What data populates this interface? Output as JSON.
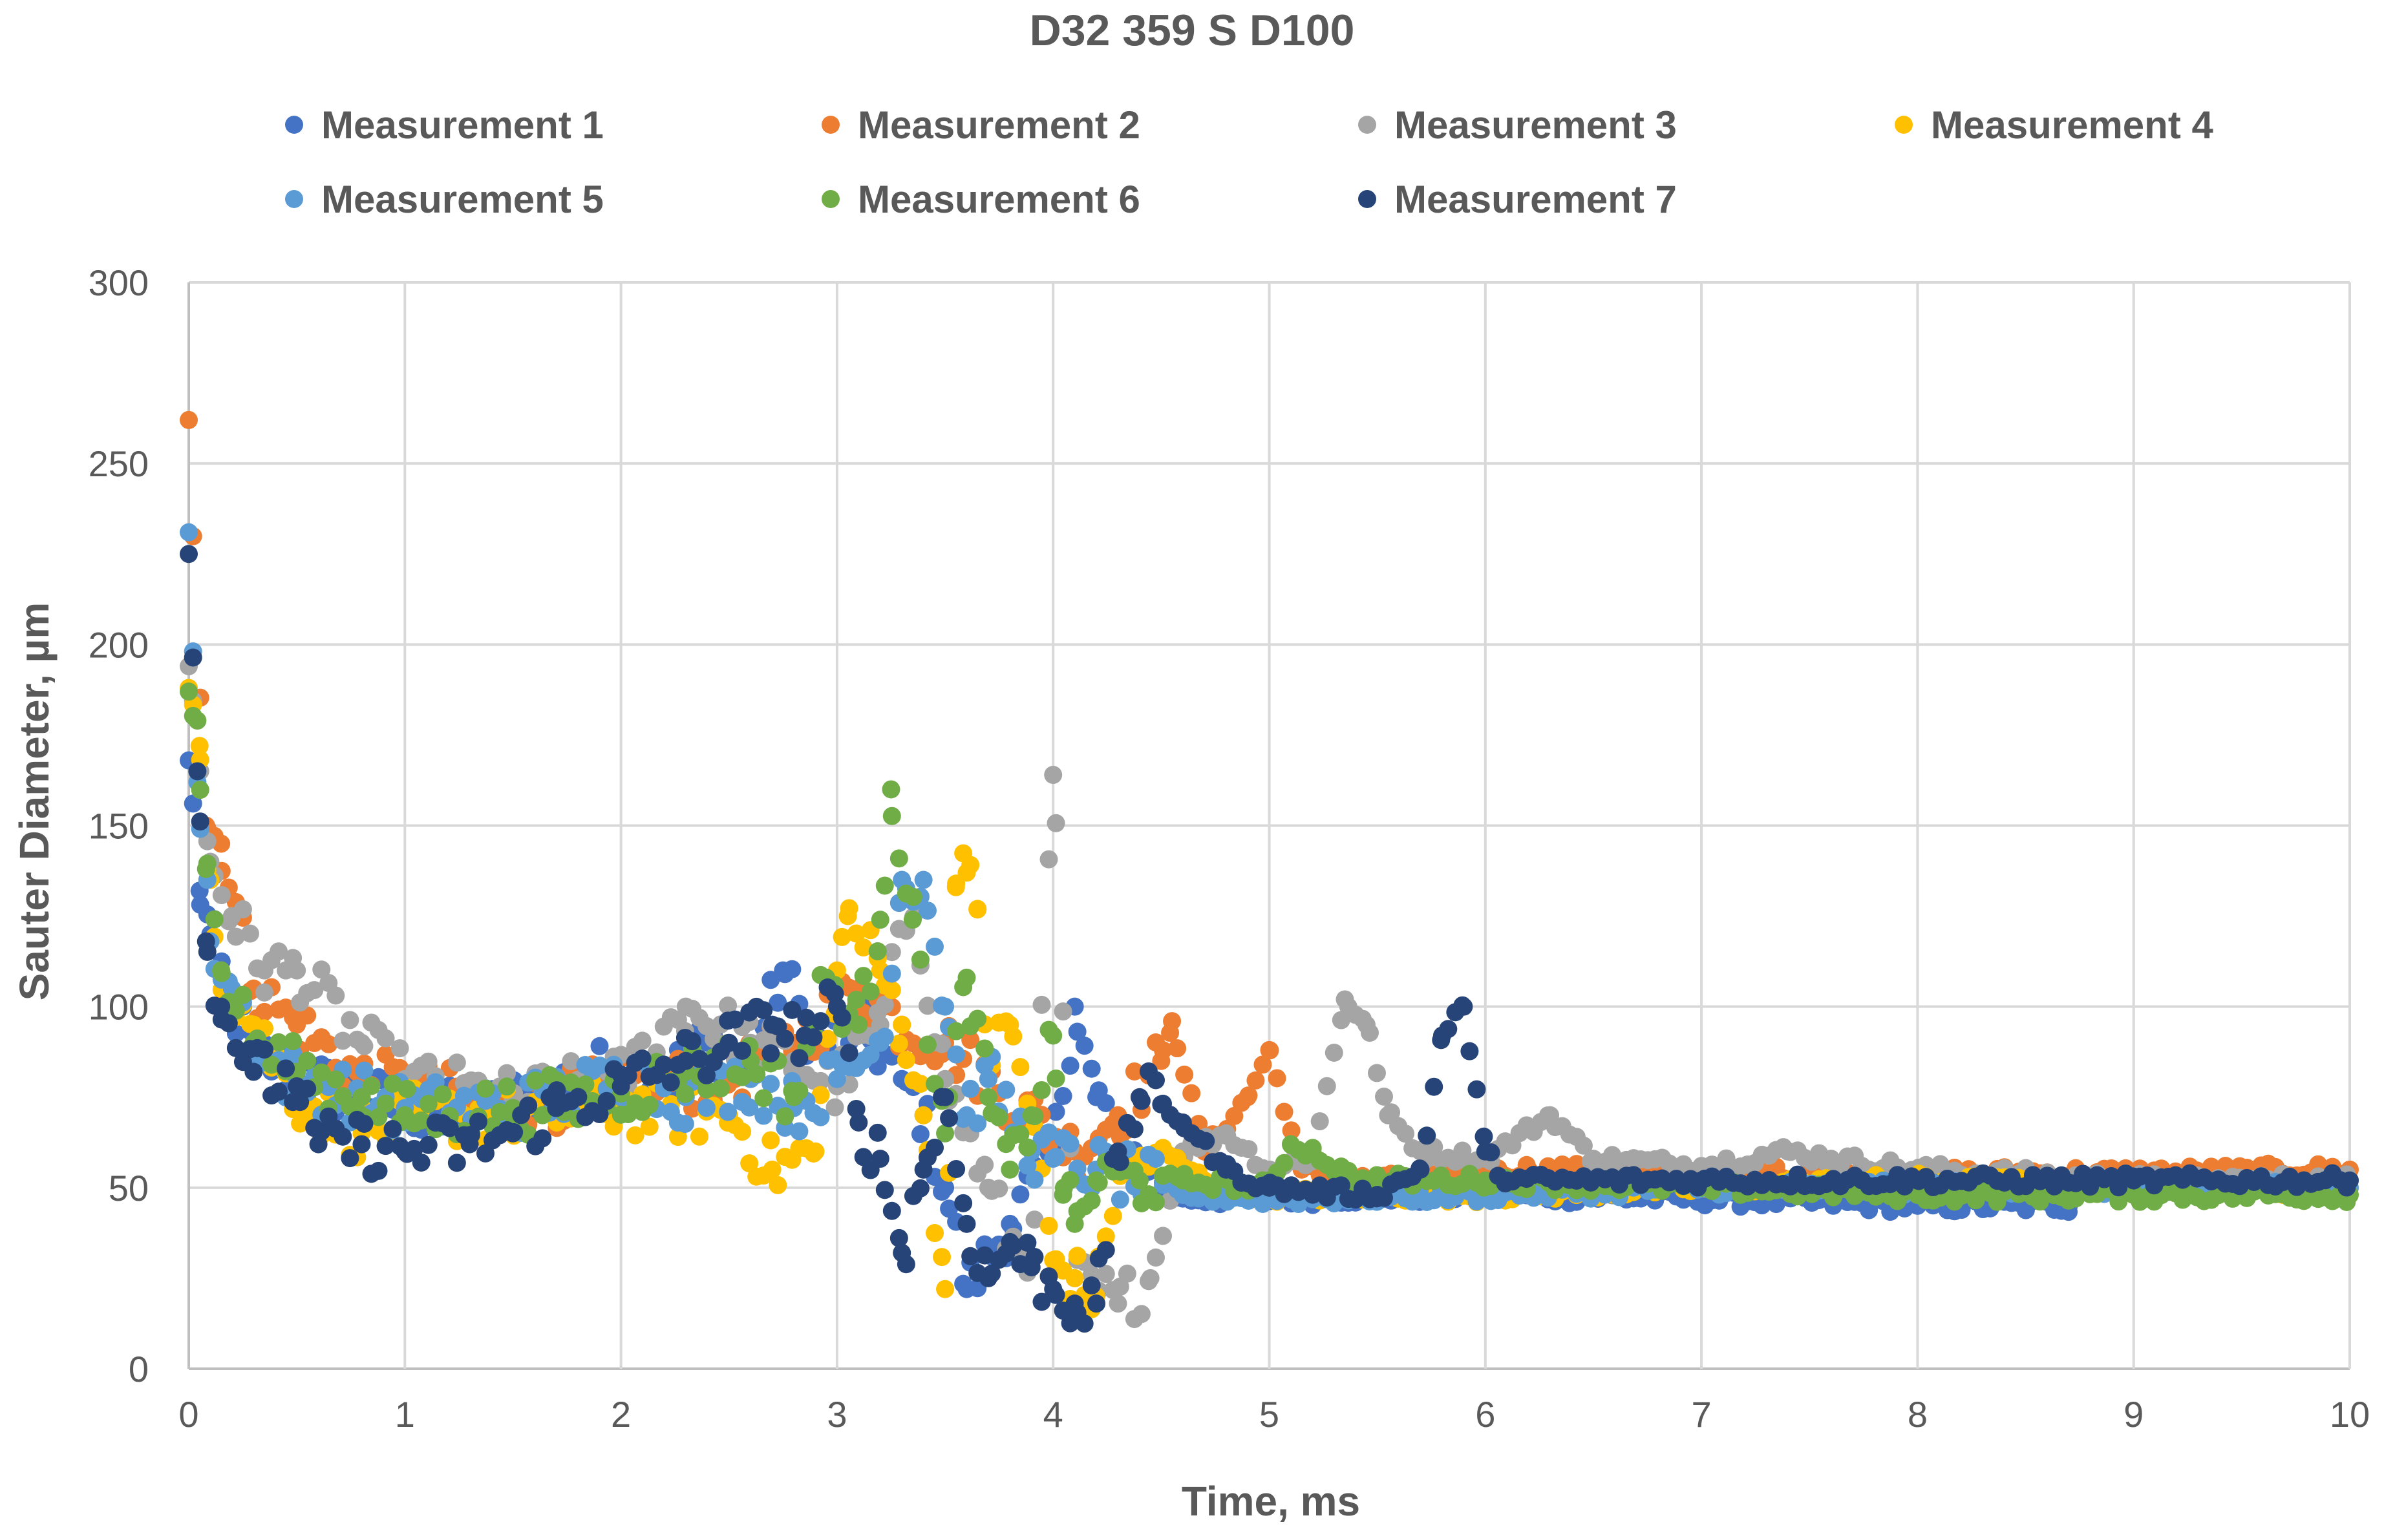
{
  "chart_data": {
    "type": "scatter",
    "title": "D32 359 S D100",
    "xlabel": "Time, ms",
    "ylabel": "Sauter Diameter, µm",
    "xlim": [
      0,
      10
    ],
    "ylim": [
      0,
      300
    ],
    "xticks": [
      0,
      1,
      2,
      3,
      4,
      5,
      6,
      7,
      8,
      9,
      10
    ],
    "yticks": [
      0,
      50,
      100,
      150,
      200,
      250,
      300
    ],
    "grid": true,
    "legend_position": "top",
    "series": [
      {
        "name": "Measurement 1",
        "color": "#4472C4",
        "keypoints": [
          [
            0,
            168
          ],
          [
            0.05,
            132
          ],
          [
            0.1,
            120
          ],
          [
            0.2,
            100
          ],
          [
            0.3,
            88
          ],
          [
            0.5,
            80
          ],
          [
            0.8,
            75
          ],
          [
            1.0,
            72
          ],
          [
            1.3,
            70
          ],
          [
            1.6,
            76
          ],
          [
            1.9,
            82
          ],
          [
            2.2,
            80
          ],
          [
            2.4,
            90
          ],
          [
            2.6,
            84
          ],
          [
            2.75,
            110
          ],
          [
            2.9,
            88
          ],
          [
            3.1,
            95
          ],
          [
            3.3,
            80
          ],
          [
            3.4,
            70
          ],
          [
            3.5,
            50
          ],
          [
            3.6,
            22
          ],
          [
            3.8,
            40
          ],
          [
            4.0,
            60
          ],
          [
            4.1,
            100
          ],
          [
            4.2,
            75
          ],
          [
            4.4,
            55
          ],
          [
            4.6,
            47
          ],
          [
            5,
            47
          ],
          [
            6,
            48
          ],
          [
            7,
            47
          ],
          [
            8,
            45
          ],
          [
            8.7,
            45
          ]
        ]
      },
      {
        "name": "Measurement 2",
        "color": "#ED7D31",
        "keypoints": [
          [
            0,
            262
          ],
          [
            0.08,
            150
          ],
          [
            0.15,
            145
          ],
          [
            0.3,
            105
          ],
          [
            0.5,
            95
          ],
          [
            0.8,
            80
          ],
          [
            1.0,
            78
          ],
          [
            1.5,
            72
          ],
          [
            2.0,
            78
          ],
          [
            2.5,
            80
          ],
          [
            2.8,
            90
          ],
          [
            3.1,
            105
          ],
          [
            3.3,
            95
          ],
          [
            3.5,
            90
          ],
          [
            3.7,
            80
          ],
          [
            3.9,
            70
          ],
          [
            4.1,
            60
          ],
          [
            4.3,
            70
          ],
          [
            4.5,
            85
          ],
          [
            4.55,
            96
          ],
          [
            4.7,
            60
          ],
          [
            4.9,
            75
          ],
          [
            5.0,
            88
          ],
          [
            5.15,
            55
          ],
          [
            5.4,
            52
          ],
          [
            5.8,
            52
          ],
          [
            6.2,
            55
          ],
          [
            7,
            54
          ],
          [
            8,
            54
          ],
          [
            9,
            54
          ],
          [
            10,
            55
          ]
        ]
      },
      {
        "name": "Measurement 3",
        "color": "#A5A5A5",
        "keypoints": [
          [
            0,
            194
          ],
          [
            0.05,
            165
          ],
          [
            0.1,
            140
          ],
          [
            0.2,
            125
          ],
          [
            0.35,
            110
          ],
          [
            0.5,
            110
          ],
          [
            0.8,
            90
          ],
          [
            1.0,
            80
          ],
          [
            1.5,
            74
          ],
          [
            2.0,
            80
          ],
          [
            2.3,
            100
          ],
          [
            2.6,
            90
          ],
          [
            2.8,
            85
          ],
          [
            3.0,
            78
          ],
          [
            3.2,
            95
          ],
          [
            3.35,
            130
          ],
          [
            3.5,
            80
          ],
          [
            3.7,
            50
          ],
          [
            3.8,
            35
          ],
          [
            3.9,
            30
          ],
          [
            4.0,
            164
          ],
          [
            4.1,
            25
          ],
          [
            4.3,
            18
          ],
          [
            4.45,
            25
          ],
          [
            4.6,
            60
          ],
          [
            4.8,
            65
          ],
          [
            5.0,
            55
          ],
          [
            5.2,
            58
          ],
          [
            5.35,
            102
          ],
          [
            5.45,
            95
          ],
          [
            5.55,
            70
          ],
          [
            5.7,
            60
          ],
          [
            6.0,
            58
          ],
          [
            6.3,
            70
          ],
          [
            6.5,
            58
          ],
          [
            7,
            56
          ],
          [
            7.4,
            60
          ],
          [
            7.6,
            58
          ],
          [
            8,
            55
          ],
          [
            9,
            52
          ],
          [
            10,
            52
          ]
        ]
      },
      {
        "name": "Measurement 4",
        "color": "#FFC000",
        "keypoints": [
          [
            0,
            188
          ],
          [
            0.05,
            172
          ],
          [
            0.1,
            135
          ],
          [
            0.15,
            110
          ],
          [
            0.3,
            95
          ],
          [
            0.5,
            75
          ],
          [
            0.8,
            65
          ],
          [
            1.0,
            70
          ],
          [
            1.5,
            70
          ],
          [
            2.0,
            72
          ],
          [
            2.5,
            70
          ],
          [
            2.7,
            55
          ],
          [
            2.9,
            60
          ],
          [
            3.0,
            110
          ],
          [
            3.05,
            125
          ],
          [
            3.2,
            110
          ],
          [
            3.3,
            95
          ],
          [
            3.4,
            70
          ],
          [
            3.5,
            22
          ],
          [
            3.55,
            133
          ],
          [
            3.6,
            137
          ],
          [
            3.65,
            127
          ],
          [
            3.7,
            85
          ],
          [
            3.8,
            95
          ],
          [
            3.9,
            70
          ],
          [
            4.0,
            30
          ],
          [
            4.1,
            25
          ],
          [
            4.2,
            20
          ],
          [
            4.3,
            55
          ],
          [
            4.5,
            60
          ],
          [
            4.7,
            52
          ],
          [
            5,
            48
          ],
          [
            6,
            48
          ],
          [
            7,
            50
          ],
          [
            8,
            52
          ],
          [
            9,
            50
          ],
          [
            10,
            50
          ]
        ]
      },
      {
        "name": "Measurement 5",
        "color": "#5B9BD5",
        "keypoints": [
          [
            0,
            231
          ],
          [
            0.04,
            162
          ],
          [
            0.1,
            118
          ],
          [
            0.2,
            105
          ],
          [
            0.35,
            85
          ],
          [
            0.5,
            80
          ],
          [
            0.8,
            75
          ],
          [
            1.0,
            72
          ],
          [
            1.5,
            72
          ],
          [
            2.0,
            80
          ],
          [
            2.3,
            75
          ],
          [
            2.6,
            80
          ],
          [
            2.8,
            72
          ],
          [
            3.0,
            80
          ],
          [
            3.2,
            90
          ],
          [
            3.3,
            135
          ],
          [
            3.4,
            135
          ],
          [
            3.5,
            100
          ],
          [
            3.6,
            70
          ],
          [
            3.7,
            80
          ],
          [
            3.9,
            60
          ],
          [
            4.0,
            58
          ],
          [
            4.2,
            55
          ],
          [
            4.4,
            52
          ],
          [
            4.6,
            48
          ],
          [
            5,
            47
          ],
          [
            6,
            48
          ],
          [
            7,
            50
          ],
          [
            8,
            50
          ],
          [
            9,
            50
          ],
          [
            10,
            50
          ]
        ]
      },
      {
        "name": "Measurement 6",
        "color": "#70AD47",
        "keypoints": [
          [
            0,
            187
          ],
          [
            0.04,
            179
          ],
          [
            0.08,
            138
          ],
          [
            0.15,
            110
          ],
          [
            0.3,
            90
          ],
          [
            0.5,
            82
          ],
          [
            0.8,
            75
          ],
          [
            1.0,
            70
          ],
          [
            1.5,
            72
          ],
          [
            2.0,
            76
          ],
          [
            2.3,
            82
          ],
          [
            2.6,
            85
          ],
          [
            2.8,
            75
          ],
          [
            2.95,
            108
          ],
          [
            3.1,
            95
          ],
          [
            3.2,
            124
          ],
          [
            3.25,
            160
          ],
          [
            3.35,
            124
          ],
          [
            3.5,
            65
          ],
          [
            3.6,
            108
          ],
          [
            3.7,
            75
          ],
          [
            3.8,
            55
          ],
          [
            3.9,
            70
          ],
          [
            4.0,
            92
          ],
          [
            4.05,
            50
          ],
          [
            4.1,
            40
          ],
          [
            4.2,
            52
          ],
          [
            4.4,
            52
          ],
          [
            4.6,
            52
          ],
          [
            5.0,
            50
          ],
          [
            5.1,
            62
          ],
          [
            5.2,
            60
          ],
          [
            5.4,
            52
          ],
          [
            6,
            52
          ],
          [
            7,
            50
          ],
          [
            8,
            48
          ],
          [
            9,
            48
          ],
          [
            10,
            48
          ]
        ]
      },
      {
        "name": "Measurement 7",
        "color": "#264478",
        "keypoints": [
          [
            0,
            225
          ],
          [
            0.04,
            165
          ],
          [
            0.08,
            118
          ],
          [
            0.15,
            100
          ],
          [
            0.3,
            82
          ],
          [
            0.5,
            78
          ],
          [
            0.6,
            62
          ],
          [
            0.8,
            62
          ],
          [
            1.0,
            60
          ],
          [
            1.3,
            62
          ],
          [
            1.5,
            65
          ],
          [
            1.7,
            72
          ],
          [
            2.0,
            78
          ],
          [
            2.3,
            85
          ],
          [
            2.5,
            90
          ],
          [
            2.7,
            95
          ],
          [
            2.85,
            92
          ],
          [
            3.0,
            100
          ],
          [
            3.1,
            68
          ],
          [
            3.2,
            58
          ],
          [
            3.3,
            32
          ],
          [
            3.4,
            55
          ],
          [
            3.5,
            75
          ],
          [
            3.6,
            40
          ],
          [
            3.7,
            25
          ],
          [
            3.8,
            35
          ],
          [
            3.9,
            28
          ],
          [
            4.0,
            22
          ],
          [
            4.1,
            18
          ],
          [
            4.2,
            18
          ],
          [
            4.3,
            60
          ],
          [
            4.4,
            75
          ],
          [
            4.5,
            73
          ],
          [
            4.6,
            68
          ],
          [
            4.8,
            55
          ],
          [
            5.0,
            50
          ],
          [
            5.5,
            48
          ],
          [
            5.7,
            55
          ],
          [
            5.8,
            92
          ],
          [
            5.9,
            100
          ],
          [
            6.0,
            60
          ],
          [
            6.1,
            52
          ],
          [
            7,
            52
          ],
          [
            8,
            52
          ],
          [
            9,
            52
          ],
          [
            10,
            52
          ]
        ]
      }
    ]
  }
}
